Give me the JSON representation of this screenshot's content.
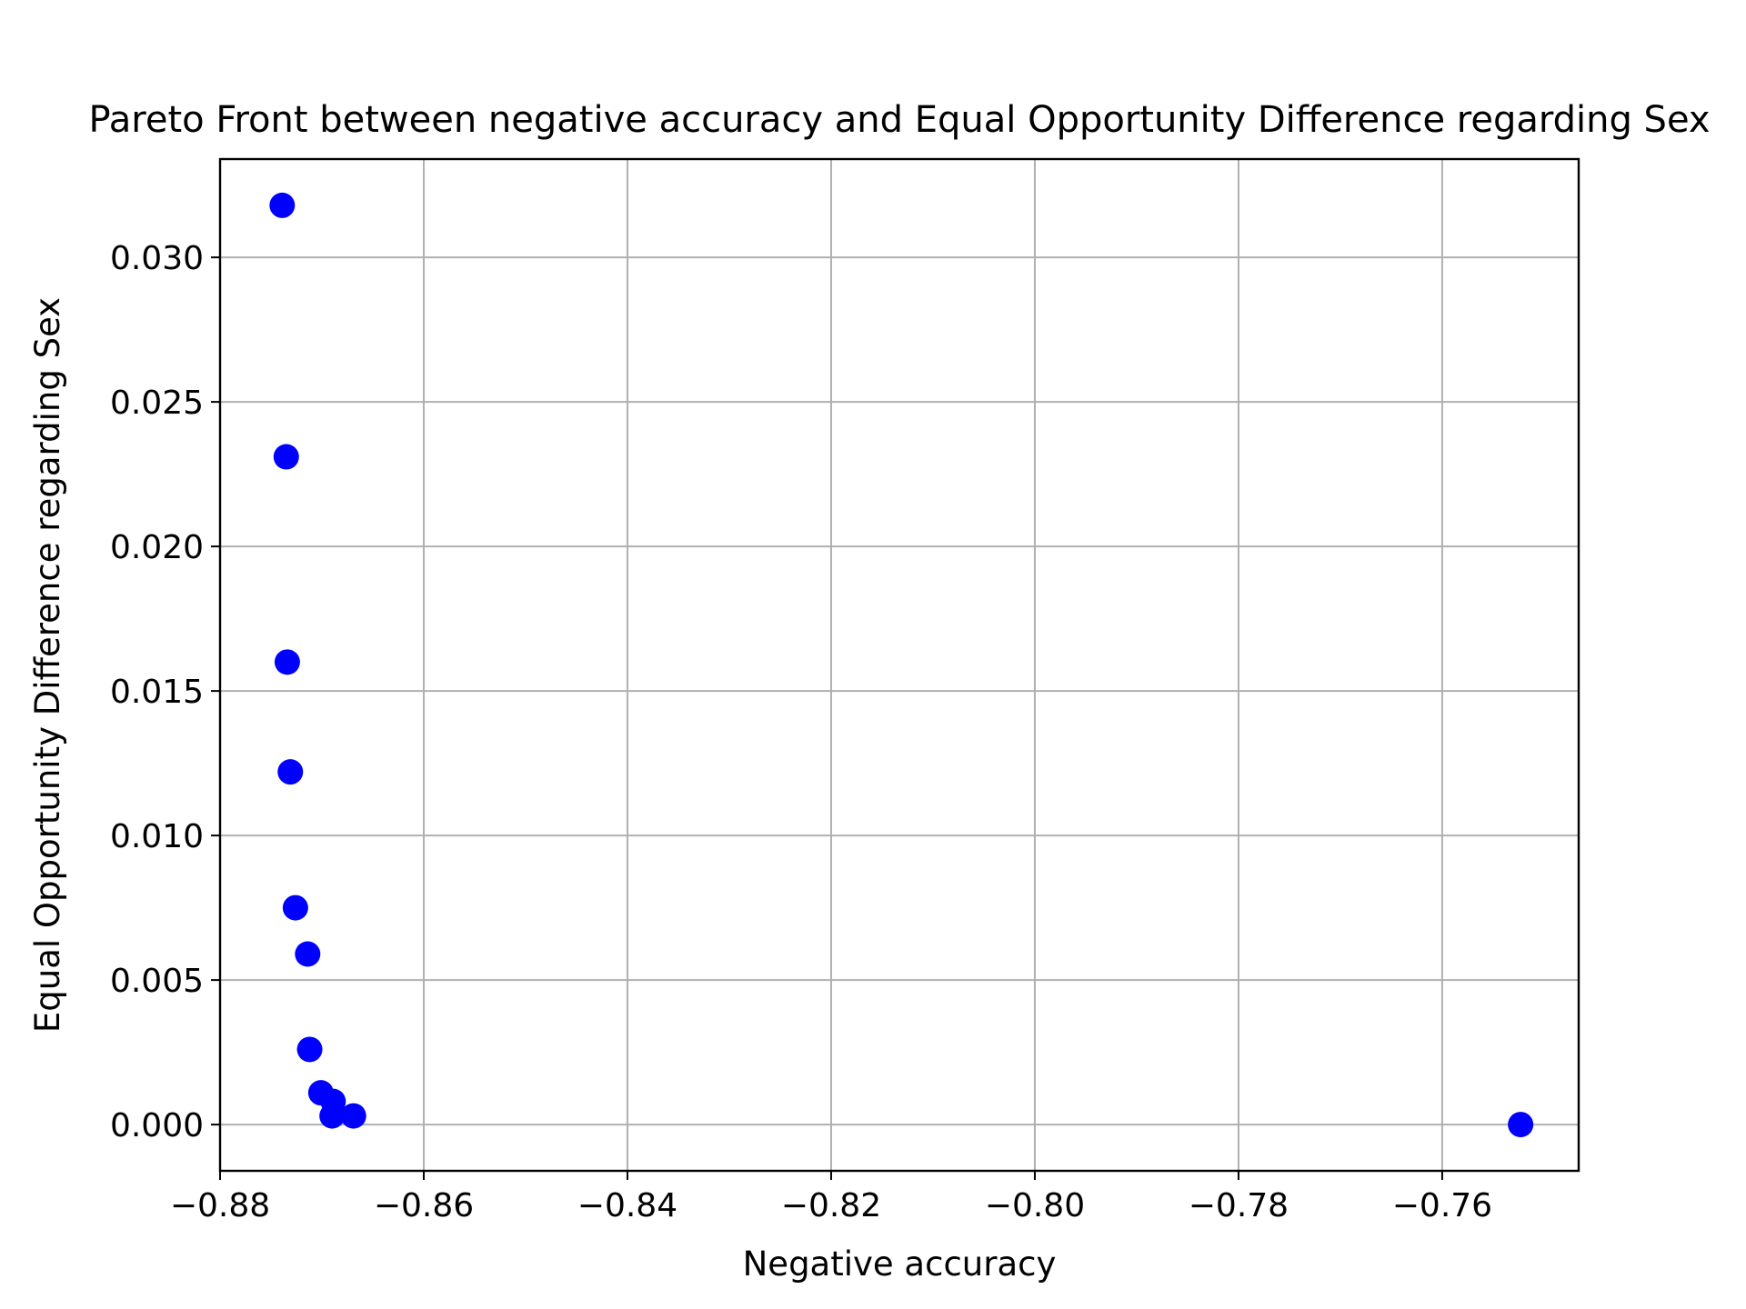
{
  "chart_data": {
    "type": "scatter",
    "title": "Pareto Front between negative accuracy and Equal Opportunity Difference regarding Sex",
    "xlabel": "Negative accuracy",
    "ylabel": "Equal Opportunity Difference regarding Sex",
    "xlim": [
      -0.88,
      -0.7466
    ],
    "ylim": [
      -0.0016,
      0.0334
    ],
    "xticks": [
      -0.88,
      -0.86,
      -0.84,
      -0.82,
      -0.8,
      -0.78,
      -0.76
    ],
    "xtick_labels": [
      "−0.88",
      "−0.86",
      "−0.84",
      "−0.82",
      "−0.80",
      "−0.78",
      "−0.76"
    ],
    "yticks": [
      0.0,
      0.005,
      0.01,
      0.015,
      0.02,
      0.025,
      0.03
    ],
    "ytick_labels": [
      "0.000",
      "0.005",
      "0.010",
      "0.015",
      "0.020",
      "0.025",
      "0.030"
    ],
    "grid": true,
    "marker_color": "#0000ff",
    "series": [
      {
        "points": [
          {
            "x": -0.8739,
            "y": 0.0318
          },
          {
            "x": -0.8735,
            "y": 0.0231
          },
          {
            "x": -0.8734,
            "y": 0.016
          },
          {
            "x": -0.8731,
            "y": 0.0122
          },
          {
            "x": -0.8726,
            "y": 0.0075
          },
          {
            "x": -0.8714,
            "y": 0.0059
          },
          {
            "x": -0.8712,
            "y": 0.0026
          },
          {
            "x": -0.8701,
            "y": 0.0011
          },
          {
            "x": -0.8689,
            "y": 0.0008
          },
          {
            "x": -0.869,
            "y": 0.0003
          },
          {
            "x": -0.8669,
            "y": 0.0003
          },
          {
            "x": -0.7523,
            "y": 0.0
          }
        ]
      }
    ]
  }
}
